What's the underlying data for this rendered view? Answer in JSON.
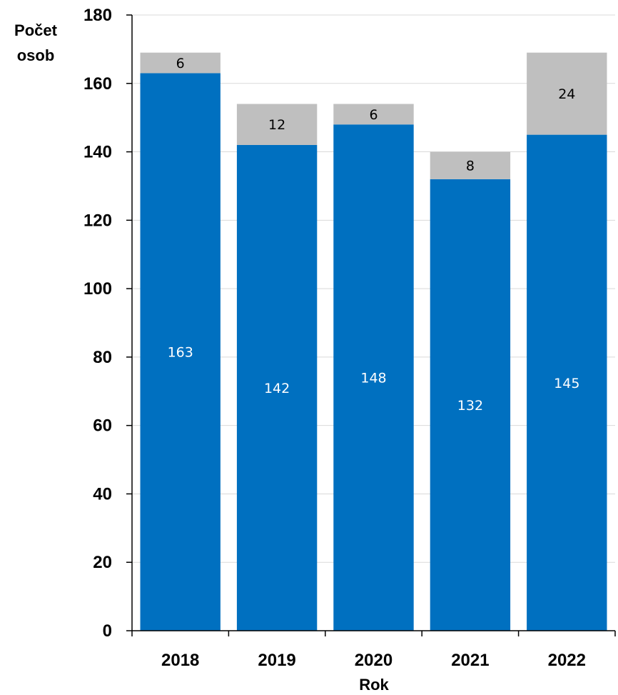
{
  "chart_data": {
    "type": "bar",
    "stacked": true,
    "categories": [
      "2018",
      "2019",
      "2020",
      "2021",
      "2022"
    ],
    "series": [
      {
        "values": [
          163,
          142,
          148,
          132,
          145
        ],
        "color": "#0070C0",
        "label_color": "#ffffff"
      },
      {
        "values": [
          6,
          12,
          6,
          8,
          24
        ],
        "color": "#BFBFBF",
        "label_color": "#000000"
      }
    ],
    "xlabel": "Rok",
    "ylabel_lines": [
      "Počet",
      "osob"
    ],
    "ylim": [
      0,
      180
    ],
    "yticks": [
      0,
      20,
      40,
      60,
      80,
      100,
      120,
      140,
      160,
      180
    ],
    "grid": true,
    "legend": false
  }
}
